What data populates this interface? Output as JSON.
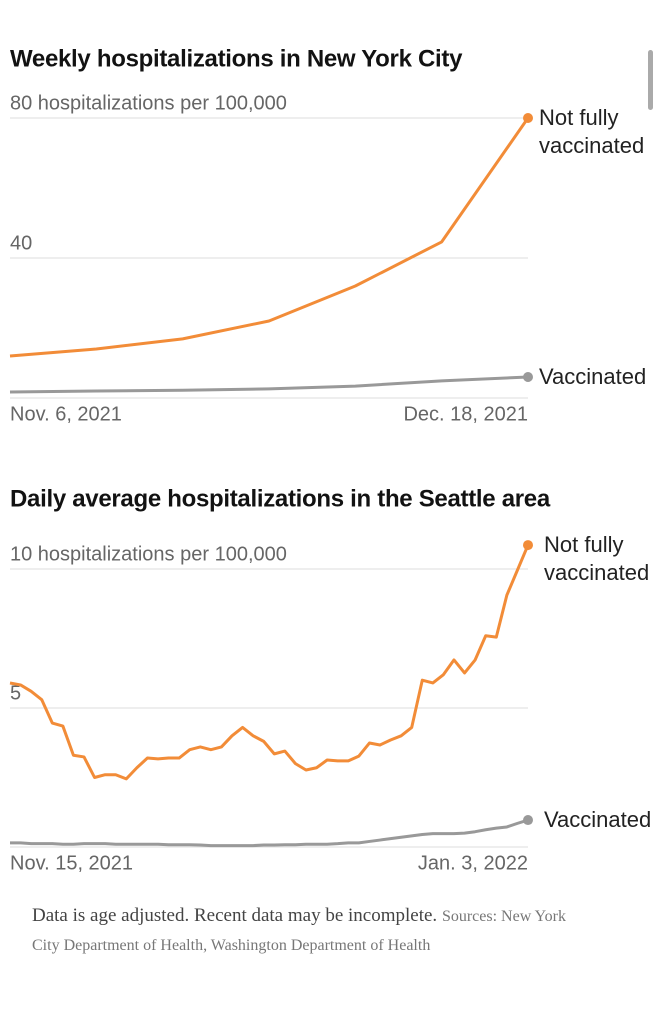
{
  "chart_data": [
    {
      "type": "line",
      "title": "Weekly hospitalizations in New York City",
      "categories": [
        "Nov. 6, 2021",
        null,
        null,
        null,
        null,
        null,
        "Dec. 18, 2021"
      ],
      "series": [
        {
          "name": "Not fully vaccinated",
          "color": "#f28c38",
          "values": [
            12,
            14,
            16.9,
            22,
            32,
            44.6,
            80
          ]
        },
        {
          "name": "Vaccinated",
          "color": "#999999",
          "values": [
            1.7,
            2,
            2.2,
            2.6,
            3.4,
            4.9,
            6
          ]
        }
      ],
      "ylim": [
        0,
        80
      ],
      "yticks": [
        40,
        {
          "value": 80,
          "label": "80 hospitalizations per 100,000"
        }
      ],
      "grid": true
    },
    {
      "type": "line",
      "title": "Daily average hospitalizations in the Seattle area",
      "categories": [
        "Nov. 15, 2021",
        null,
        null,
        null,
        null,
        null,
        null,
        null,
        null,
        null,
        null,
        null,
        null,
        null,
        null,
        null,
        null,
        null,
        null,
        null,
        null,
        null,
        null,
        null,
        null,
        null,
        null,
        null,
        null,
        null,
        null,
        null,
        null,
        null,
        null,
        null,
        null,
        null,
        null,
        null,
        null,
        null,
        null,
        null,
        null,
        null,
        null,
        null,
        null,
        "Jan. 3, 2022"
      ],
      "series": [
        {
          "name": "Not fully vaccinated",
          "color": "#f28c38",
          "values": [
            5.9,
            5.83,
            5.6,
            5.3,
            4.46,
            4.35,
            3.3,
            3.24,
            2.5,
            2.6,
            2.6,
            2.45,
            2.85,
            3.2,
            3.17,
            3.2,
            3.2,
            3.5,
            3.6,
            3.5,
            3.6,
            4.0,
            4.3,
            4.0,
            3.8,
            3.35,
            3.45,
            3.0,
            2.77,
            2.85,
            3.13,
            3.1,
            3.1,
            3.27,
            3.74,
            3.67,
            3.85,
            4.0,
            4.3,
            6.0,
            5.9,
            6.2,
            6.73,
            6.26,
            6.73,
            7.6,
            7.55,
            9.06,
            9.96,
            10.86
          ]
        },
        {
          "name": "Vaccinated",
          "color": "#999999",
          "values": [
            0.15,
            0.15,
            0.12,
            0.12,
            0.12,
            0.1,
            0.1,
            0.12,
            0.12,
            0.12,
            0.1,
            0.1,
            0.1,
            0.1,
            0.1,
            0.08,
            0.08,
            0.08,
            0.07,
            0.05,
            0.05,
            0.05,
            0.05,
            0.05,
            0.07,
            0.07,
            0.08,
            0.08,
            0.1,
            0.1,
            0.1,
            0.12,
            0.15,
            0.15,
            0.2,
            0.25,
            0.3,
            0.35,
            0.4,
            0.45,
            0.48,
            0.48,
            0.48,
            0.5,
            0.55,
            0.62,
            0.68,
            0.72,
            0.85,
            0.97
          ]
        }
      ],
      "ylim": [
        0,
        10
      ],
      "yticks": [
        5,
        {
          "value": 10,
          "label": "10 hospitalizations per 100,000"
        }
      ],
      "grid": true
    }
  ],
  "footnote": {
    "note": "Data is age adjusted. Recent data may be incomplete.",
    "sources": "Sources: New York City Department of Health, Washington Department of Health"
  }
}
